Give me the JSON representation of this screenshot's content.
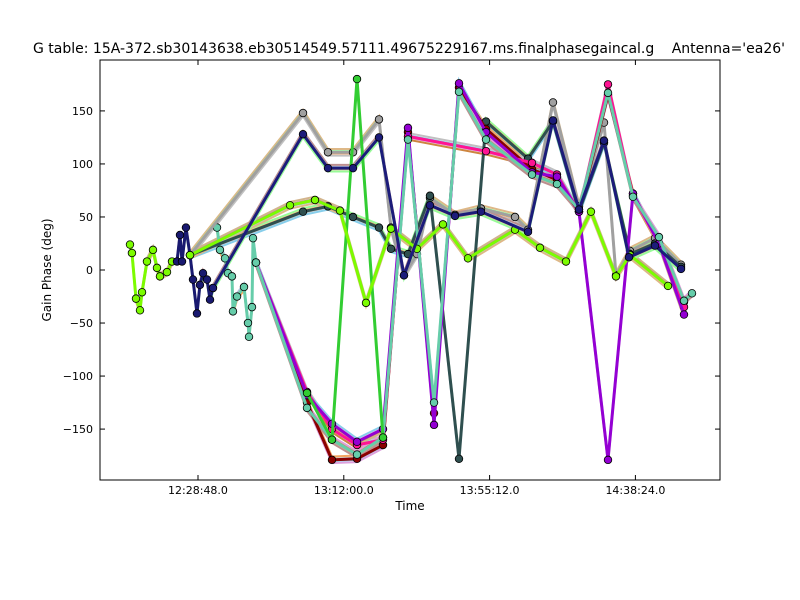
{
  "chart_data": {
    "type": "line",
    "title": "G table: 15A-372.sb30143638.eb30514549.57111.49675229167.ms.finalphasegaincal.g",
    "title_right": "Antenna='ea26'",
    "xlabel": "Time",
    "ylabel": "Gain Phase (deg)",
    "xlim": [
      "11:59:46",
      "15:03:28"
    ],
    "ylim": [
      -198,
      198
    ],
    "xticks": [
      "12:28:48.0",
      "13:12:00.0",
      "13:55:12.0",
      "14:38:24.0"
    ],
    "yticks": [
      -150,
      -100,
      -50,
      0,
      50,
      100,
      150
    ],
    "grid": false,
    "markers": "circle",
    "series": [
      {
        "color": "#7cfc00",
        "x": [
          "12:08:39",
          "12:09:14",
          "12:10:26",
          "12:11:37",
          "12:12:13",
          "12:13:41",
          "12:15:28",
          "12:16:39",
          "12:17:32",
          "12:19:37",
          "12:21:06"
        ],
        "y": [
          24,
          16,
          -27,
          -38,
          -21,
          8,
          19,
          2,
          -6,
          -2,
          8
        ]
      },
      {
        "color": "#191970",
        "x": [
          "12:22:35",
          "12:23:28",
          "12:24:04",
          "12:25:14",
          "12:26:26",
          "12:27:19",
          "12:28:30",
          "12:29:23",
          "12:30:17",
          "12:31:28",
          "12:32:22",
          "12:33:14"
        ],
        "y": [
          8,
          33,
          8,
          40,
          14,
          -9,
          -41,
          -14,
          -3,
          -9,
          -28,
          -17
        ]
      },
      {
        "color": "#66cdaa",
        "x": [
          "12:34:26",
          "12:35:19",
          "12:36:48",
          "12:37:41",
          "12:38:52",
          "12:39:10",
          "12:40:22",
          "12:42:26",
          "12:43:37",
          "12:43:55",
          "12:44:48",
          "12:45:06",
          "12:45:59"
        ],
        "y": [
          40,
          19,
          11,
          -3,
          -6,
          -39,
          -25,
          -16,
          -50,
          -63,
          -35,
          30,
          7
        ]
      },
      {
        "color": "#a0a0a0",
        "x": [
          "12:26:26",
          "12:59:55",
          "13:07:19",
          "13:14:44",
          "13:22:26",
          "13:25:59",
          "13:29:50",
          "13:33:41",
          "13:37:32",
          "13:44:57",
          "13:52:39",
          "14:02:44",
          "14:06:35",
          "14:13:59",
          "14:21:41",
          "14:29:06",
          "14:32:39",
          "14:36:48",
          "14:44:13",
          "14:51:55"
        ],
        "y": [
          14,
          148,
          111,
          111,
          142,
          40,
          -5,
          15,
          68,
          52,
          58,
          50,
          38,
          158,
          60,
          139,
          -5,
          18,
          30,
          5
        ]
      },
      {
        "color": "#2f4f4f",
        "x": [
          "12:26:26",
          "12:59:55",
          "13:07:19",
          "13:14:44",
          "13:22:26",
          "13:25:59",
          "13:31:01",
          "13:37:32",
          "13:46:08",
          "13:54:08",
          "14:06:35",
          "14:13:59",
          "14:21:41",
          "14:29:06",
          "14:36:48",
          "14:44:13",
          "14:51:55"
        ],
        "y": [
          14,
          55,
          60,
          50,
          40,
          20,
          15,
          70,
          -178,
          140,
          105,
          140,
          55,
          120,
          15,
          25,
          3
        ]
      },
      {
        "color": "#8b0000",
        "x": [
          "12:45:59",
          "13:01:06",
          "13:08:30",
          "13:15:55",
          "13:23:37",
          "13:31:01",
          "13:38:44",
          "13:46:08",
          "13:54:08",
          "14:07:46",
          "14:15:10",
          "14:21:41",
          "14:30:17",
          "14:37:41",
          "14:45:23",
          "14:52:48"
        ],
        "y": [
          7,
          -125,
          -179,
          -178,
          -165,
          130,
          -135,
          172,
          133,
          95,
          85,
          55,
          165,
          72,
          25,
          -30
        ]
      },
      {
        "color": "#ff1493",
        "x": [
          "12:45:59",
          "13:01:06",
          "13:08:30",
          "13:15:55",
          "13:23:37",
          "13:31:01",
          "13:54:08",
          "14:07:46",
          "14:15:10",
          "14:21:41",
          "14:30:17",
          "14:37:41",
          "14:45:23",
          "14:52:48"
        ],
        "y": [
          7,
          -115,
          -150,
          -165,
          -160,
          126,
          112,
          101,
          90,
          55,
          175,
          70,
          25,
          -35
        ]
      },
      {
        "color": "#9400d3",
        "x": [
          "12:45:59",
          "13:01:06",
          "13:08:30",
          "13:15:55",
          "13:23:37",
          "13:31:01",
          "13:38:44",
          "13:46:08",
          "13:54:08",
          "14:07:46",
          "14:15:10",
          "14:21:41",
          "14:30:17",
          "14:37:41",
          "14:45:23",
          "14:52:48"
        ],
        "y": [
          7,
          -118,
          -145,
          -162,
          -150,
          134,
          -146,
          176,
          130,
          92,
          88,
          55,
          -179,
          72,
          25,
          -42
        ]
      },
      {
        "color": "#66cdaa",
        "x": [
          "12:45:59",
          "13:01:06",
          "13:08:30",
          "13:15:55",
          "13:23:37",
          "13:31:01",
          "13:38:44",
          "13:46:08",
          "13:54:08",
          "14:07:46",
          "14:15:10",
          "14:21:41",
          "14:30:17",
          "14:37:41",
          "14:45:23",
          "14:52:48",
          "14:55:10"
        ],
        "y": [
          7,
          -130,
          -160,
          -174,
          -158,
          123,
          -125,
          168,
          123,
          90,
          81,
          57,
          167,
          69,
          31,
          -29,
          -22
        ]
      },
      {
        "color": "#32cd32",
        "x": [
          "13:01:06",
          "13:08:30",
          "13:15:55",
          "13:23:37"
        ],
        "y": [
          -116,
          -160,
          180,
          -158
        ]
      },
      {
        "color": "#7cfc00",
        "x": [
          "12:26:26",
          "12:56:04",
          "13:03:28",
          "13:10:52",
          "13:18:35",
          "13:25:59",
          "13:33:41",
          "13:41:23",
          "13:48:48",
          "14:02:44",
          "14:10:08",
          "14:17:50",
          "14:25:14",
          "14:32:39",
          "14:36:48",
          "14:48:04"
        ],
        "y": [
          14,
          61,
          66,
          56,
          -31,
          39,
          20,
          43,
          11,
          38,
          21,
          8,
          55,
          -6,
          14,
          -15
        ]
      },
      {
        "color": "#1c1c7a",
        "x": [
          "12:33:14",
          "12:59:55",
          "13:07:19",
          "13:14:44",
          "13:22:26",
          "13:29:50",
          "13:37:32",
          "13:44:57",
          "13:52:39",
          "14:06:35",
          "14:13:59",
          "14:21:41",
          "14:29:06",
          "14:36:30",
          "14:44:13",
          "14:51:55"
        ],
        "y": [
          -17,
          128,
          96,
          96,
          125,
          -5,
          61,
          51,
          55,
          36,
          141,
          57,
          122,
          12,
          23,
          1
        ]
      }
    ]
  }
}
